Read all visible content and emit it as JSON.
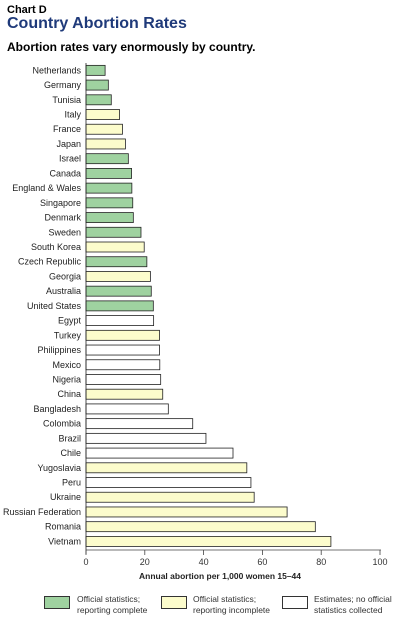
{
  "header": {
    "kicker": "Chart D",
    "title": "Country Abortion Rates",
    "subtitle": "Abortion rates vary enormously by country."
  },
  "colors": {
    "complete": "#9fd2a0",
    "incomplete": "#fcfccc",
    "estimate": "#ffffff",
    "title": "#1f3a7a"
  },
  "chart_data": {
    "type": "bar",
    "orientation": "horizontal",
    "xlabel": "Annual abortion per 1,000 women 15–44",
    "xlim": [
      0,
      100
    ],
    "xticks": [
      0,
      20,
      40,
      60,
      80,
      100
    ],
    "categories": [
      "Netherlands",
      "Germany",
      "Tunisia",
      "Italy",
      "France",
      "Japan",
      "Israel",
      "Canada",
      "England & Wales",
      "Singapore",
      "Denmark",
      "Sweden",
      "South Korea",
      "Czech Republic",
      "Georgia",
      "Australia",
      "United States",
      "Egypt",
      "Turkey",
      "Philippines",
      "Mexico",
      "Nigeria",
      "China",
      "Bangladesh",
      "Colombia",
      "Brazil",
      "Chile",
      "Yugoslavia",
      "Peru",
      "Ukraine",
      "Russian Federation",
      "Romania",
      "Vietnam"
    ],
    "values": [
      6.5,
      7.6,
      8.6,
      11.4,
      12.4,
      13.4,
      14.4,
      15.5,
      15.6,
      15.9,
      16.1,
      18.7,
      19.8,
      20.7,
      21.9,
      22.2,
      22.9,
      23.0,
      25.0,
      25.0,
      25.1,
      25.4,
      26.1,
      28.0,
      36.3,
      40.8,
      50.0,
      54.7,
      56.1,
      57.2,
      68.4,
      78.0,
      83.3
    ],
    "status": [
      "complete",
      "complete",
      "complete",
      "incomplete",
      "incomplete",
      "incomplete",
      "complete",
      "complete",
      "complete",
      "complete",
      "complete",
      "complete",
      "incomplete",
      "complete",
      "incomplete",
      "complete",
      "complete",
      "estimate",
      "incomplete",
      "estimate",
      "estimate",
      "estimate",
      "incomplete",
      "estimate",
      "estimate",
      "estimate",
      "estimate",
      "incomplete",
      "estimate",
      "incomplete",
      "incomplete",
      "incomplete",
      "incomplete"
    ],
    "legend": [
      {
        "key": "complete",
        "line1": "Official statistics;",
        "line2": "reporting complete"
      },
      {
        "key": "incomplete",
        "line1": "Official statistics;",
        "line2": "reporting incomplete"
      },
      {
        "key": "estimate",
        "line1": "Estimates; no official",
        "line2": "statistics collected"
      }
    ],
    "legend_position": "bottom",
    "grid": false
  }
}
